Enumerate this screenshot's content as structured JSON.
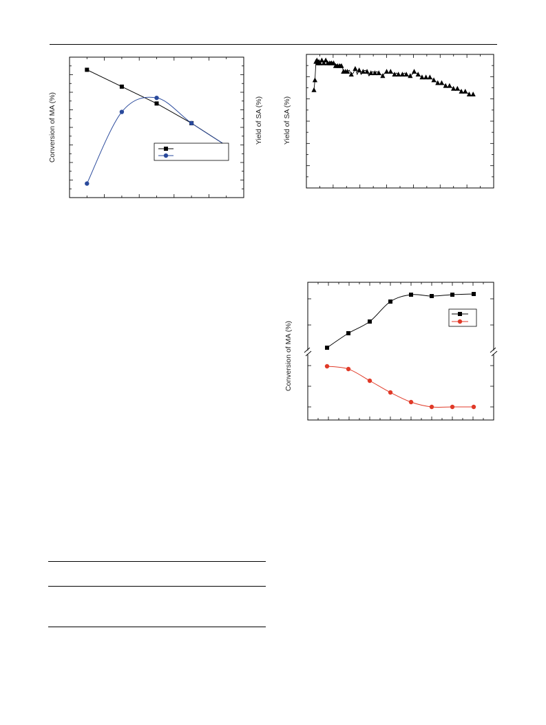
{
  "charts": {
    "left_top": {
      "chart_data": {
        "type": "line",
        "ylabel": "Conversion of MA (%)",
        "xlabel": "",
        "series": [
          {
            "color": "#000000",
            "marker": "square",
            "x": [
              1,
              2,
              3,
              4,
              5
            ],
            "y": [
              91,
              79,
              67,
              53,
              37
            ]
          },
          {
            "color": "#2a4a9c",
            "marker": "circle",
            "x": [
              1,
              2,
              3,
              4,
              5
            ],
            "y": [
              10,
              61,
              71,
              53,
              37
            ]
          }
        ],
        "xlim": [
          0.5,
          5.5
        ],
        "ylim": [
          0,
          100
        ],
        "legend_position": "center-right",
        "grid": false
      }
    },
    "right_top": {
      "chart_data": {
        "type": "scatter",
        "ylabel": "Yield of SA (%)",
        "xlabel": "",
        "series": [
          {
            "color": "#000000",
            "marker": "triangle",
            "x": [
              1,
              1.5,
              2,
              2.5,
              3,
              3.5,
              4,
              4.5,
              5,
              5.5,
              6,
              6.5,
              7,
              7.5,
              8,
              8.5,
              9,
              9.5,
              10,
              10.5,
              11,
              11.5,
              12,
              12.5,
              13,
              13.5,
              14,
              14.5,
              15,
              15.5,
              16,
              16.5,
              17,
              17.5,
              18,
              19,
              20,
              21,
              22,
              23,
              24,
              25,
              26,
              27,
              28,
              29,
              30,
              31,
              32,
              33,
              34,
              35,
              36,
              37,
              38,
              39,
              40,
              41,
              42,
              43,
              44,
              45,
              46,
              47,
              48,
              49,
              50,
              51,
              52,
              53,
              54,
              55,
              56,
              57,
              58,
              59,
              60,
              61,
              62,
              63,
              64,
              65,
              66,
              67,
              68,
              69,
              70,
              71,
              72,
              73,
              74,
              75,
              76,
              77,
              78,
              79,
              80,
              81,
              82,
              83
            ],
            "y": [
              75,
              82,
              95,
              96,
              94,
              95,
              94,
              95,
              96,
              95,
              94,
              95,
              96,
              95,
              94,
              93,
              94,
              95,
              94,
              93,
              94,
              93,
              92,
              93,
              92,
              91,
              92,
              93,
              92,
              91,
              88,
              87,
              88,
              87,
              88,
              89,
              86,
              87,
              90,
              86,
              89,
              86,
              88,
              89,
              88,
              85,
              87,
              88,
              87,
              88,
              87,
              86,
              85,
              87,
              88,
              87,
              88,
              87,
              86,
              87,
              86,
              85,
              86,
              87,
              86,
              85,
              85,
              86,
              88,
              87,
              86,
              85,
              84,
              83,
              84,
              83,
              84,
              83,
              82,
              81,
              80,
              79,
              80,
              79,
              78,
              77,
              78,
              77,
              76,
              75,
              76,
              75,
              74,
              73,
              74,
              73,
              72,
              71,
              72,
              71
            ]
          },
          {
            "color": "#000000",
            "marker": "line",
            "x": [],
            "y": []
          }
        ],
        "grid": false
      }
    },
    "right_bottom": {
      "chart_data": {
        "type": "line",
        "ylabel": "Conversion of MA (%)",
        "xlabel": "",
        "axis_break": true,
        "series": [
          {
            "color": "#000000",
            "marker": "square",
            "x": [
              1,
              2,
              3,
              4,
              5,
              6,
              7,
              8
            ],
            "y": [
              67,
              74,
              80,
              90,
              94,
              94,
              94,
              94
            ]
          },
          {
            "color": "#e03a28",
            "marker": "circle",
            "x": [
              1,
              2,
              3,
              4,
              5,
              6,
              7,
              8
            ],
            "y": [
              58,
              57,
              51,
              45,
              40,
              37,
              37,
              37
            ]
          }
        ],
        "legend_position": "top-right",
        "grid": false
      }
    }
  }
}
